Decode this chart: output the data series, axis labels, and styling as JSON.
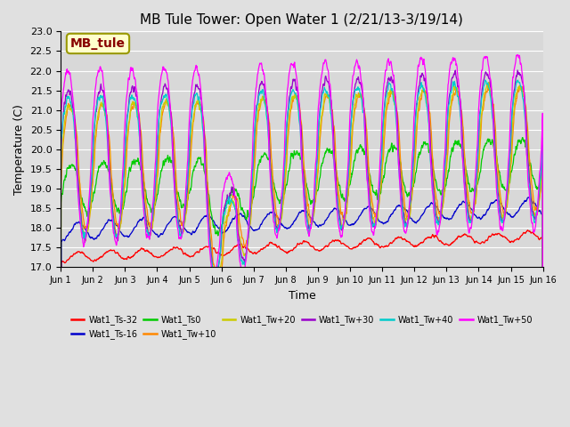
{
  "title": "MB Tule Tower: Open Water 1 (2/21/13-3/19/14)",
  "xlabel": "Time",
  "ylabel": "Temperature (C)",
  "ylim": [
    17.0,
    23.0
  ],
  "xlim": [
    0,
    15
  ],
  "xtick_labels": [
    "Jun 1",
    "Jun 2",
    "Jun 3",
    "Jun 4",
    "Jun 5",
    "Jun 6",
    "Jun 7",
    "Jun 8",
    "Jun 9",
    "Jun 10",
    "Jun 11",
    "Jun 12",
    "Jun 13",
    "Jun 14",
    "Jun 15",
    "Jun 16"
  ],
  "yticks": [
    17.0,
    17.5,
    18.0,
    18.5,
    19.0,
    19.5,
    20.0,
    20.5,
    21.0,
    21.5,
    22.0,
    22.5,
    23.0
  ],
  "fig_facecolor": "#e0e0e0",
  "ax_facecolor": "#d8d8d8",
  "series": [
    {
      "label": "Wat1_Ts-32",
      "color": "#ff0000"
    },
    {
      "label": "Wat1_Ts-16",
      "color": "#0000cc"
    },
    {
      "label": "Wat1_Ts0",
      "color": "#00cc00"
    },
    {
      "label": "Wat1_Tw+10",
      "color": "#ff8800"
    },
    {
      "label": "Wat1_Tw+20",
      "color": "#cccc00"
    },
    {
      "label": "Wat1_Tw+30",
      "color": "#9900cc"
    },
    {
      "label": "Wat1_Tw+40",
      "color": "#00cccc"
    },
    {
      "label": "Wat1_Tw+50",
      "color": "#ff00ff"
    }
  ],
  "annotation": {
    "text": "MB_tule",
    "facecolor": "#ffffcc",
    "edgecolor": "#999900",
    "textcolor": "#880000",
    "fontsize": 10,
    "fontweight": "bold"
  },
  "grid_color": "#ffffff",
  "linewidth": 0.9,
  "legend_ncol": 6,
  "legend_fontsize": 7
}
